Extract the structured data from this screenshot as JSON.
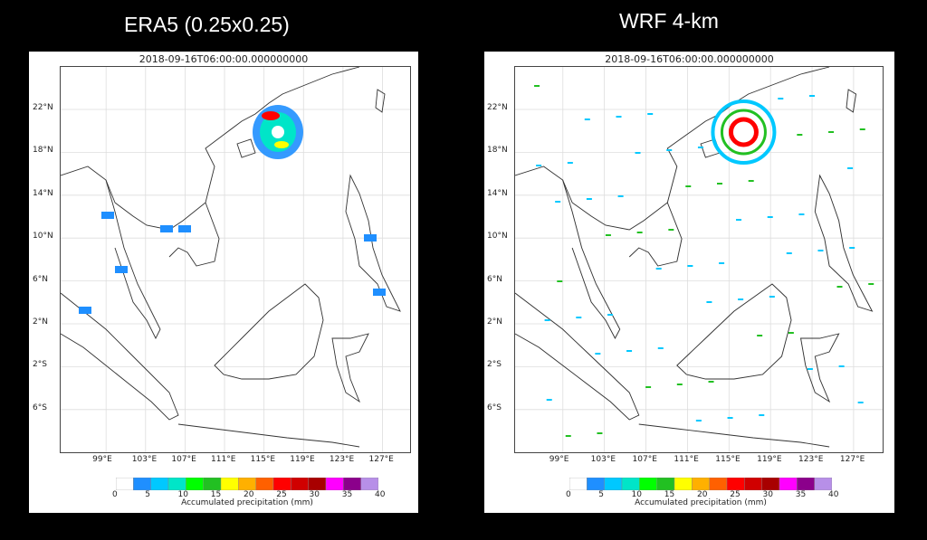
{
  "panels": [
    {
      "heading": "ERA5 (0.25x0.25)",
      "map_title": "2018-09-16T06:00:00.000000000",
      "lat_labels": [
        "22°N",
        "18°N",
        "14°N",
        "10°N",
        "6°N",
        "2°N",
        "2°S",
        "6°S"
      ],
      "lon_labels": [
        "99°E",
        "103°E",
        "107°E",
        "111°E",
        "115°E",
        "119°E",
        "123°E",
        "127°E"
      ],
      "colorbar": {
        "ticks": [
          "0",
          "5",
          "10",
          "15",
          "20",
          "25",
          "30",
          "35",
          "40"
        ],
        "label": "Accumulated precipitation (mm)"
      }
    },
    {
      "heading": "WRF 4-km",
      "map_title": "2018-09-16T06:00:00.000000000",
      "lat_labels": [
        "22°N",
        "18°N",
        "14°N",
        "10°N",
        "6°N",
        "2°N",
        "2°S",
        "6°S"
      ],
      "lon_labels": [
        "99°E",
        "103°E",
        "107°E",
        "111°E",
        "115°E",
        "119°E",
        "123°E",
        "127°E"
      ],
      "colorbar": {
        "ticks": [
          "0",
          "5",
          "10",
          "15",
          "20",
          "25",
          "30",
          "35",
          "40"
        ],
        "label": "Accumulated precipitation (mm)"
      }
    }
  ],
  "colorbar_colors": [
    "#ffffff",
    "#1f8fff",
    "#00c8ff",
    "#00e5c8",
    "#00ff00",
    "#22c022",
    "#ffff00",
    "#ffb000",
    "#ff6000",
    "#ff0000",
    "#d00000",
    "#a80000",
    "#ff00ff",
    "#8b008b",
    "#b78fe8"
  ]
}
